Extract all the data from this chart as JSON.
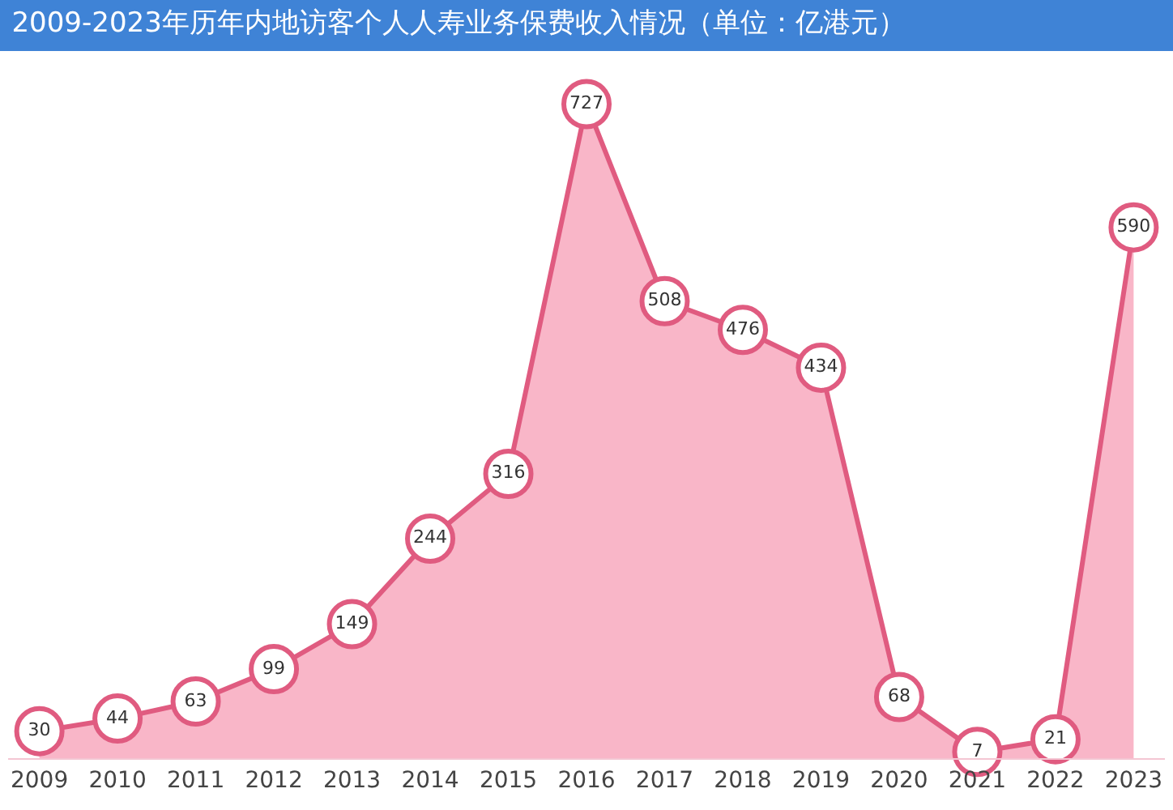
{
  "chart_data": {
    "type": "area",
    "title": "2009-2023年历年内地访客个人人寿业务保费收入情况（单位：亿港元）",
    "categories": [
      "2009",
      "2010",
      "2011",
      "2012",
      "2013",
      "2014",
      "2015",
      "2016",
      "2017",
      "2018",
      "2019",
      "2020",
      "2021",
      "2022",
      "2023"
    ],
    "values": [
      30,
      44,
      63,
      99,
      149,
      244,
      316,
      727,
      508,
      476,
      434,
      68,
      7,
      21,
      590
    ],
    "color": "#f9b6c8",
    "data_labels": true,
    "marker": "circle",
    "tick_labels": "x"
  }
}
